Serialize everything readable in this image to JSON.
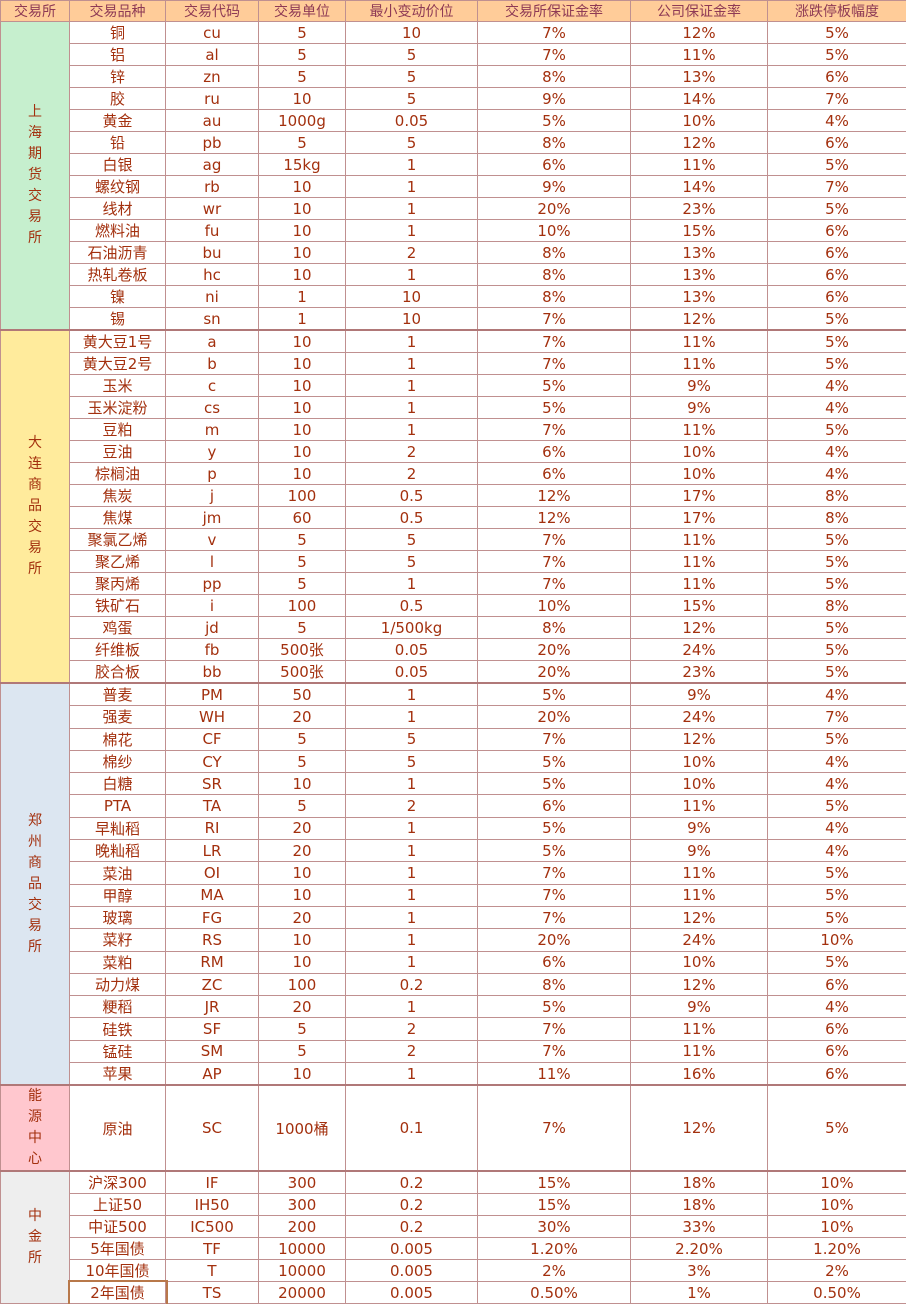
{
  "headers": [
    "交易所",
    "交易品种",
    "交易代码",
    "交易单位",
    "最小变动价位",
    "交易所保证金率",
    "公司保证金率",
    "涨跌停板幅度"
  ],
  "colors": {
    "shfe": "#c6efce",
    "dce": "#ffeb9c",
    "czce": "#dce6f1",
    "ine": "#ffc7ce",
    "cffex": "#eeeeee",
    "header": "#ffcc99"
  },
  "groups": [
    {
      "key": "shfe",
      "exchange": "上海期货交易所",
      "rows": [
        [
          "铜",
          "cu",
          "5",
          "10",
          "7%",
          "12%",
          "5%"
        ],
        [
          "铝",
          "al",
          "5",
          "5",
          "7%",
          "11%",
          "5%"
        ],
        [
          "锌",
          "zn",
          "5",
          "5",
          "8%",
          "13%",
          "6%"
        ],
        [
          "胶",
          "ru",
          "10",
          "5",
          "9%",
          "14%",
          "7%"
        ],
        [
          "黄金",
          "au",
          "1000g",
          "0.05",
          "5%",
          "10%",
          "4%"
        ],
        [
          "铅",
          "pb",
          "5",
          "5",
          "8%",
          "12%",
          "6%"
        ],
        [
          "白银",
          "ag",
          "15kg",
          "1",
          "6%",
          "11%",
          "5%"
        ],
        [
          "螺纹钢",
          "rb",
          "10",
          "1",
          "9%",
          "14%",
          "7%"
        ],
        [
          "线材",
          "wr",
          "10",
          "1",
          "20%",
          "23%",
          "5%"
        ],
        [
          "燃料油",
          "fu",
          "10",
          "1",
          "10%",
          "15%",
          "6%"
        ],
        [
          "石油沥青",
          "bu",
          "10",
          "2",
          "8%",
          "13%",
          "6%"
        ],
        [
          "热轧卷板",
          "hc",
          "10",
          "1",
          "8%",
          "13%",
          "6%"
        ],
        [
          "镍",
          "ni",
          "1",
          "10",
          "8%",
          "13%",
          "6%"
        ],
        [
          "锡",
          "sn",
          "1",
          "10",
          "7%",
          "12%",
          "5%"
        ]
      ]
    },
    {
      "key": "dce",
      "exchange": "大连商品交易所",
      "rows": [
        [
          "黄大豆1号",
          "a",
          "10",
          "1",
          "7%",
          "11%",
          "5%"
        ],
        [
          "黄大豆2号",
          "b",
          "10",
          "1",
          "7%",
          "11%",
          "5%"
        ],
        [
          "玉米",
          "c",
          "10",
          "1",
          "5%",
          "9%",
          "4%"
        ],
        [
          "玉米淀粉",
          "cs",
          "10",
          "1",
          "5%",
          "9%",
          "4%"
        ],
        [
          "豆粕",
          "m",
          "10",
          "1",
          "7%",
          "11%",
          "5%"
        ],
        [
          "豆油",
          "y",
          "10",
          "2",
          "6%",
          "10%",
          "4%"
        ],
        [
          "棕榈油",
          "p",
          "10",
          "2",
          "6%",
          "10%",
          "4%"
        ],
        [
          "焦炭",
          "j",
          "100",
          "0.5",
          "12%",
          "17%",
          "8%"
        ],
        [
          "焦煤",
          "jm",
          "60",
          "0.5",
          "12%",
          "17%",
          "8%"
        ],
        [
          "聚氯乙烯",
          "v",
          "5",
          "5",
          "7%",
          "11%",
          "5%"
        ],
        [
          "聚乙烯",
          "l",
          "5",
          "5",
          "7%",
          "11%",
          "5%"
        ],
        [
          "聚丙烯",
          "pp",
          "5",
          "1",
          "7%",
          "11%",
          "5%"
        ],
        [
          "铁矿石",
          "i",
          "100",
          "0.5",
          "10%",
          "15%",
          "8%"
        ],
        [
          "鸡蛋",
          "jd",
          "5",
          "1/500kg",
          "8%",
          "12%",
          "5%"
        ],
        [
          "纤维板",
          "fb",
          "500张",
          "0.05",
          "20%",
          "24%",
          "5%"
        ],
        [
          "胶合板",
          "bb",
          "500张",
          "0.05",
          "20%",
          "23%",
          "5%"
        ]
      ]
    },
    {
      "key": "czce",
      "exchange": "郑州商品交易所",
      "rows": [
        [
          "普麦",
          "PM",
          "50",
          "1",
          "5%",
          "9%",
          "4%"
        ],
        [
          "强麦",
          "WH",
          "20",
          "1",
          "20%",
          "24%",
          "7%"
        ],
        [
          "棉花",
          "CF",
          "5",
          "5",
          "7%",
          "12%",
          "5%"
        ],
        [
          "棉纱",
          "CY",
          "5",
          "5",
          "5%",
          "10%",
          "4%"
        ],
        [
          "白糖",
          "SR",
          "10",
          "1",
          "5%",
          "10%",
          "4%"
        ],
        [
          "PTA",
          "TA",
          "5",
          "2",
          "6%",
          "11%",
          "5%"
        ],
        [
          "早籼稻",
          "RI",
          "20",
          "1",
          "5%",
          "9%",
          "4%"
        ],
        [
          "晚籼稻",
          "LR",
          "20",
          "1",
          "5%",
          "9%",
          "4%"
        ],
        [
          "菜油",
          "OI",
          "10",
          "1",
          "7%",
          "11%",
          "5%"
        ],
        [
          "甲醇",
          "MA",
          "10",
          "1",
          "7%",
          "11%",
          "5%"
        ],
        [
          "玻璃",
          "FG",
          "20",
          "1",
          "7%",
          "12%",
          "5%"
        ],
        [
          "菜籽",
          "RS",
          "10",
          "1",
          "20%",
          "24%",
          "10%"
        ],
        [
          "菜粕",
          "RM",
          "10",
          "1",
          "6%",
          "10%",
          "5%"
        ],
        [
          "动力煤",
          "ZC",
          "100",
          "0.2",
          "8%",
          "12%",
          "6%"
        ],
        [
          "粳稻",
          "JR",
          "20",
          "1",
          "5%",
          "9%",
          "4%"
        ],
        [
          "硅铁",
          "SF",
          "5",
          "2",
          "7%",
          "11%",
          "6%"
        ],
        [
          "锰硅",
          "SM",
          "5",
          "2",
          "7%",
          "11%",
          "6%"
        ],
        [
          "苹果",
          "AP",
          "10",
          "1",
          "11%",
          "16%",
          "6%"
        ]
      ]
    },
    {
      "key": "ine",
      "exchange": "能源中心",
      "rows": [
        [
          "原油",
          "SC",
          "1000桶",
          "0.1",
          "7%",
          "12%",
          "5%"
        ]
      ]
    },
    {
      "key": "cffex",
      "exchange": "中金所",
      "rows": [
        [
          "沪深300",
          "IF",
          "300",
          "0.2",
          "15%",
          "18%",
          "10%"
        ],
        [
          "上证50",
          "IH50",
          "300",
          "0.2",
          "15%",
          "18%",
          "10%"
        ],
        [
          "中证500",
          "IC500",
          "200",
          "0.2",
          "30%",
          "33%",
          "10%"
        ],
        [
          "5年国债",
          "TF",
          "10000",
          "0.005",
          "1.20%",
          "2.20%",
          "1.20%"
        ],
        [
          "10年国债",
          "T",
          "10000",
          "0.005",
          "2%",
          "3%",
          "2%"
        ],
        [
          "2年国债",
          "TS",
          "20000",
          "0.005",
          "0.50%",
          "1%",
          "0.50%"
        ]
      ]
    }
  ]
}
